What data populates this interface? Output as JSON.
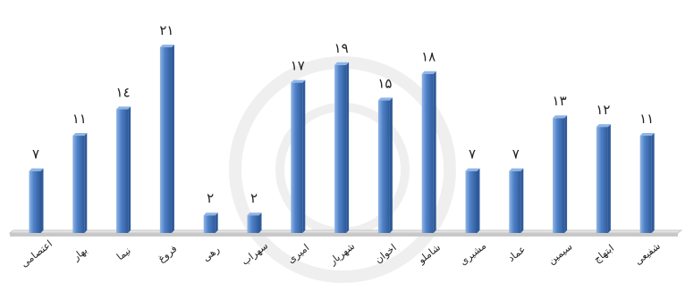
{
  "chart_data": {
    "type": "bar",
    "categories": [
      "اعتصامی",
      "بهار",
      "نیما",
      "فروغ",
      "رهی",
      "سهراب",
      "امیری",
      "شهریار",
      "اخوان",
      "شاملو",
      "مشیری",
      "عماد",
      "سیمین",
      "ابتهاج",
      "شفیعی"
    ],
    "values": [
      7,
      11,
      14,
      21,
      2,
      2,
      17,
      19,
      15,
      18,
      7,
      7,
      13,
      12,
      11
    ],
    "value_labels": [
      "۷",
      "۱۱",
      "۱٤",
      "۲۱",
      "۲",
      "۲",
      "۱۷",
      "۱۹",
      "۱۵",
      "۱۸",
      "۷",
      "۷",
      "۱۳",
      "۱۲",
      "۱۱"
    ],
    "ylim": [
      0,
      21
    ],
    "grid": false,
    "legend": "none",
    "bar_color": "#4f81c7",
    "bar_dark": "#2e5a9a",
    "bar_light": "#8fb5e6",
    "floor_color": "#c8c8c8"
  }
}
